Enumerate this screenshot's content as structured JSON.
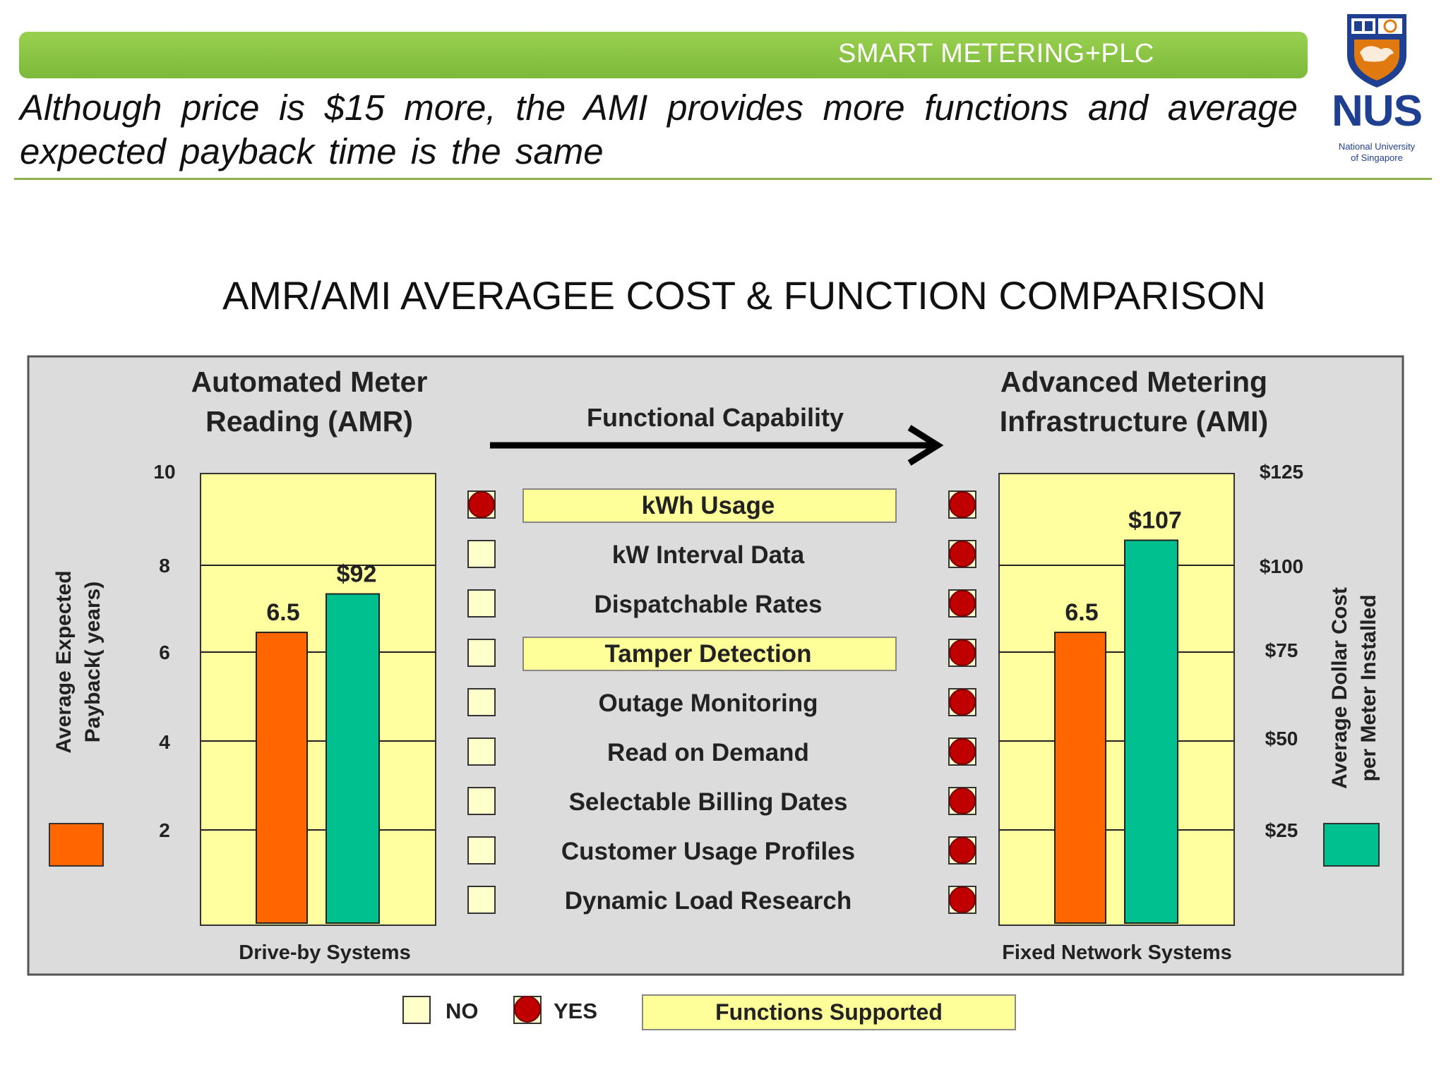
{
  "header": {
    "banner": "SMART METERING+PLC",
    "subtitle": "Although price is $15 more, the AMI provides more functions and average expected payback time is the same"
  },
  "logo": {
    "text": "NUS",
    "line1": "National University",
    "line2": "of Singapore",
    "icon": "nus-crest-icon"
  },
  "chart_title": "AMR/AMI AVERAGEE COST & FUNCTION COMPARISON",
  "colors": {
    "payback": "#ff6600",
    "cost": "#00c08f",
    "panel_bg": "#dcdcdc",
    "plot_bg": "#ffffa0",
    "yes_dot": "#c00000",
    "highlight": "#ffff99"
  },
  "chart_data": {
    "type": "bar",
    "capability_label": "Functional Capability",
    "left_axis": {
      "label": "Average Expected Payback( years)",
      "ticks": [
        "2",
        "4",
        "6",
        "8",
        "10"
      ]
    },
    "right_axis": {
      "label": "Average Dollar Cost per Meter Installed",
      "ticks": [
        "$25",
        "$50",
        "$75",
        "$100",
        "$125"
      ]
    },
    "systems": [
      {
        "name": "Automated Meter Reading (AMR)",
        "name_line1": "Automated Meter",
        "name_line2": "Reading (AMR)",
        "type_label": "Drive-by Systems",
        "payback": 6.5,
        "payback_label": "6.5",
        "cost": 92,
        "cost_label": "$92"
      },
      {
        "name": "Advanced Metering Infrastructure (AMI)",
        "name_line1": "Advanced Metering",
        "name_line2": "Infrastructure (AMI)",
        "type_label": "Fixed Network Systems",
        "payback": 6.5,
        "payback_label": "6.5",
        "cost": 107,
        "cost_label": "$107"
      }
    ],
    "functions": [
      {
        "name": "kWh Usage",
        "amr": true,
        "ami": true,
        "highlight": true
      },
      {
        "name": "kW Interval Data",
        "amr": false,
        "ami": true,
        "highlight": false
      },
      {
        "name": "Dispatchable Rates",
        "amr": false,
        "ami": true,
        "highlight": false
      },
      {
        "name": "Tamper Detection",
        "amr": false,
        "ami": true,
        "highlight": true
      },
      {
        "name": "Outage Monitoring",
        "amr": false,
        "ami": true,
        "highlight": false
      },
      {
        "name": "Read on Demand",
        "amr": false,
        "ami": true,
        "highlight": false
      },
      {
        "name": "Selectable Billing Dates",
        "amr": false,
        "ami": true,
        "highlight": false
      },
      {
        "name": "Customer Usage Profiles",
        "amr": false,
        "ami": true,
        "highlight": false
      },
      {
        "name": "Dynamic Load Research",
        "amr": false,
        "ami": true,
        "highlight": false
      }
    ],
    "legend": {
      "no": "NO",
      "yes": "YES",
      "supported": "Functions Supported"
    }
  }
}
